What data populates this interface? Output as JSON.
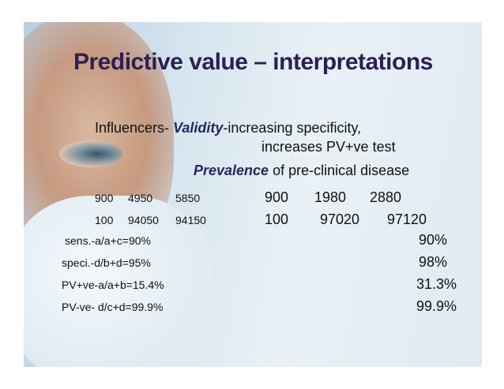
{
  "title": "Predictive value – interpretations",
  "influencers": {
    "label": "Influencers-",
    "validity": "Validity",
    "validity_text": "-increasing specificity,",
    "validity_text2": "increases PV+ve test",
    "prevalence": "Prevalence",
    "prevalence_text": "of pre-clinical disease"
  },
  "table": {
    "rows": [
      [
        900,
        4950,
        5850,
        900,
        1980,
        2880
      ],
      [
        100,
        94050,
        94150,
        100,
        97020,
        97120
      ]
    ]
  },
  "results": [
    {
      "label": "sens.-a/a+c=90%",
      "value": "90%"
    },
    {
      "label": "speci.-d/b+d=95%",
      "value": "98%"
    },
    {
      "label": "PV+ve-a/a+b=15.4%",
      "value": "31.3%"
    },
    {
      "label": "PV-ve- d/c+d=99.9%",
      "value": "99.9%"
    }
  ]
}
